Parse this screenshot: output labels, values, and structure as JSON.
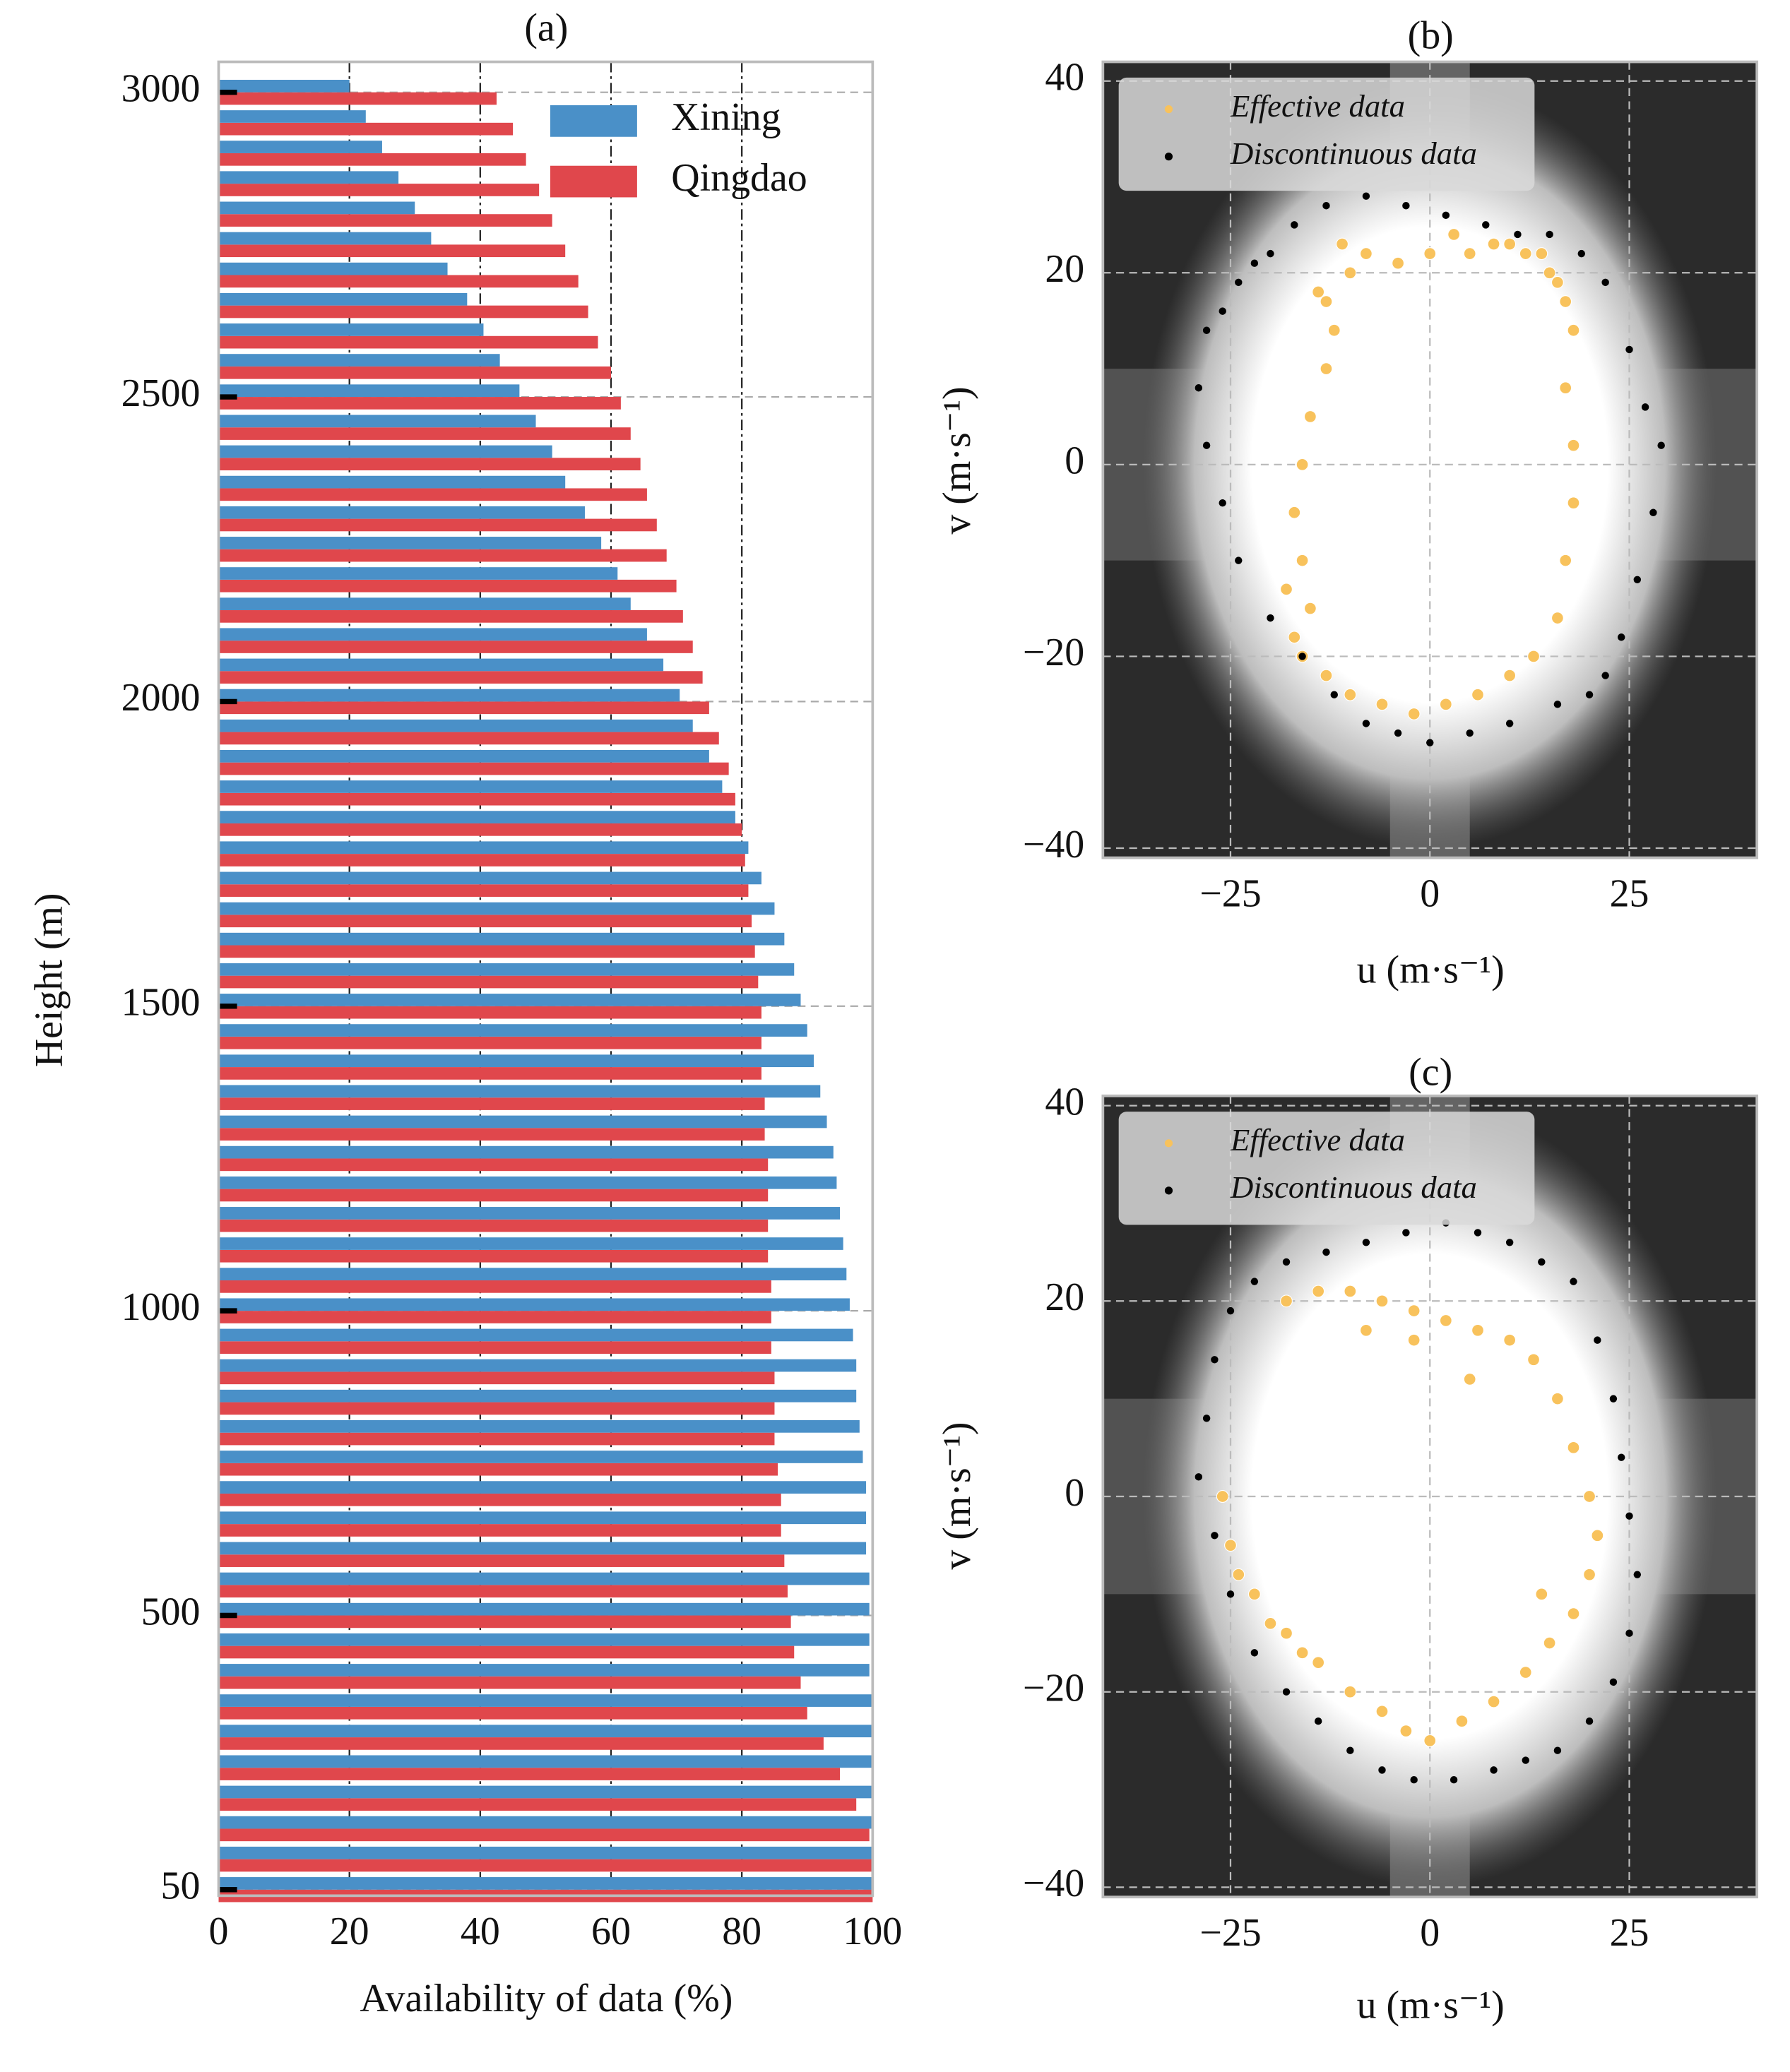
{
  "chart_data": [
    {
      "type": "bar",
      "orientation": "horizontal",
      "title": "(a)",
      "xlabel": "Availability of data (%)",
      "ylabel": "Height (m)",
      "y": [
        50,
        100,
        150,
        200,
        250,
        300,
        350,
        400,
        450,
        500,
        550,
        600,
        650,
        700,
        750,
        800,
        850,
        900,
        950,
        1000,
        1050,
        1100,
        1150,
        1200,
        1250,
        1300,
        1350,
        1400,
        1450,
        1500,
        1550,
        1600,
        1650,
        1700,
        1750,
        1800,
        1850,
        1900,
        1950,
        2000,
        2050,
        2100,
        2150,
        2200,
        2250,
        2300,
        2350,
        2400,
        2450,
        2500,
        2550,
        2600,
        2650,
        2700,
        2750,
        2800,
        2850,
        2900,
        2950,
        3000
      ],
      "series": [
        {
          "name": "Qingdao",
          "color": "#e0474c",
          "values": [
            100,
            100,
            99.5,
            97.5,
            95,
            92.5,
            90,
            89,
            88,
            87.5,
            87,
            86.5,
            86,
            86,
            85.5,
            85,
            85,
            85,
            84.5,
            84.5,
            84.5,
            84,
            84,
            84,
            84,
            83.5,
            83.5,
            83,
            83,
            83,
            82.5,
            82,
            81.5,
            81,
            80.5,
            80,
            79,
            78,
            76.5,
            75,
            74,
            72.5,
            71,
            70,
            68.5,
            67,
            65.5,
            64.5,
            63,
            61.5,
            60,
            58,
            56.5,
            55,
            53,
            51,
            49,
            47,
            45,
            42.5
          ]
        },
        {
          "name": "Xining",
          "color": "#4a90c8",
          "values": [
            100,
            100,
            100,
            100,
            100,
            100,
            100,
            99.5,
            99.5,
            99.5,
            99.5,
            99,
            99,
            99,
            98.5,
            98,
            97.5,
            97.5,
            97,
            96.5,
            96,
            95.5,
            95,
            94.5,
            94,
            93,
            92,
            91,
            90,
            89,
            88,
            86.5,
            85,
            83,
            81,
            79,
            77,
            75,
            72.5,
            70.5,
            68,
            65.5,
            63,
            61,
            58.5,
            56,
            53,
            51,
            48.5,
            46,
            43,
            40.5,
            38,
            35,
            32.5,
            30,
            27.5,
            25,
            22.5,
            20
          ]
        }
      ],
      "xlim": [
        0,
        100
      ],
      "xticks": [
        0,
        20,
        40,
        60,
        80,
        100
      ],
      "ylim": [
        40,
        3050
      ],
      "yticks": [
        50,
        500,
        1000,
        1500,
        2000,
        2500,
        3000
      ],
      "grid": true,
      "legend": "upper right"
    },
    {
      "type": "scatter",
      "title": "(b)",
      "xlabel": "u (m·s⁻¹)",
      "ylabel": "v (m·s⁻¹)",
      "xlim": [
        -41,
        41
      ],
      "xticks": [
        {
          "value": -25,
          "label": "−25"
        },
        0,
        25
      ],
      "ylim": [
        -41,
        42
      ],
      "yticks": [
        {
          "value": -40,
          "label": "−40"
        },
        {
          "value": -20,
          "label": "−20"
        },
        0,
        20,
        40
      ],
      "grid": true,
      "legend": "upper left",
      "series": [
        {
          "name": "Effective data",
          "color": "#f8c25c",
          "x": [
            -14,
            -12,
            -10,
            -13,
            -15,
            -16,
            -17,
            -16,
            -15,
            -17,
            -18,
            -16,
            -13,
            -10,
            -6,
            -2,
            2,
            6,
            10,
            13,
            16,
            17,
            18,
            18,
            17,
            18,
            16,
            14,
            10,
            5,
            0,
            -4,
            -8,
            -11,
            -13,
            3,
            8,
            12,
            15,
            17
          ],
          "values": [
            18,
            14,
            20,
            10,
            5,
            0,
            -5,
            -10,
            -15,
            -18,
            -13,
            -20,
            -22,
            -24,
            -25,
            -26,
            -25,
            -24,
            -22,
            -20,
            -16,
            -10,
            -4,
            2,
            8,
            14,
            19,
            22,
            23,
            22,
            22,
            21,
            22,
            23,
            17,
            24,
            23,
            22,
            20,
            17
          ]
        },
        {
          "name": "Discontinuous data",
          "color": "#000000",
          "x": [
            -20,
            -17,
            -13,
            -8,
            -3,
            2,
            7,
            11,
            15,
            19,
            22,
            25,
            27,
            29,
            28,
            26,
            24,
            22,
            20,
            16,
            10,
            5,
            0,
            -4,
            -8,
            -12,
            -16,
            -20,
            -24,
            -26,
            -28,
            -29,
            -28,
            -26,
            -24,
            -22
          ],
          "values": [
            22,
            25,
            27,
            28,
            27,
            26,
            25,
            24,
            24,
            22,
            19,
            12,
            6,
            2,
            -5,
            -12,
            -18,
            -22,
            -24,
            -25,
            -27,
            -28,
            -29,
            -28,
            -27,
            -24,
            -20,
            -16,
            -10,
            -4,
            2,
            8,
            14,
            16,
            19,
            21
          ]
        }
      ]
    },
    {
      "type": "scatter",
      "title": "(c)",
      "xlabel": "u (m·s⁻¹)",
      "ylabel": "v (m·s⁻¹)",
      "xlim": [
        -41,
        41
      ],
      "xticks": [
        {
          "value": -25,
          "label": "−25"
        },
        0,
        25
      ],
      "ylim": [
        -41,
        41
      ],
      "yticks": [
        {
          "value": -40,
          "label": "−40"
        },
        {
          "value": -20,
          "label": "−20"
        },
        0,
        20,
        40
      ],
      "grid": true,
      "legend": "upper left",
      "series": [
        {
          "name": "Effective data",
          "color": "#f8c25c",
          "x": [
            -18,
            -14,
            -10,
            -6,
            -2,
            2,
            6,
            10,
            13,
            16,
            18,
            20,
            21,
            20,
            18,
            15,
            12,
            8,
            4,
            0,
            -3,
            -6,
            -10,
            -14,
            -18,
            -22,
            -25,
            -26,
            -24,
            -20,
            -2,
            5,
            14,
            -16,
            -8
          ],
          "values": [
            20,
            21,
            21,
            20,
            19,
            18,
            17,
            16,
            14,
            10,
            5,
            0,
            -4,
            -8,
            -12,
            -15,
            -18,
            -21,
            -23,
            -25,
            -24,
            -22,
            -20,
            -17,
            -14,
            -10,
            -5,
            0,
            -8,
            -13,
            16,
            12,
            -10,
            -16,
            17
          ]
        },
        {
          "name": "Discontinuous data",
          "color": "#000000",
          "x": [
            -22,
            -18,
            -13,
            -8,
            -3,
            2,
            6,
            10,
            14,
            18,
            21,
            23,
            24,
            25,
            26,
            25,
            23,
            20,
            16,
            12,
            8,
            3,
            -2,
            -6,
            -10,
            -14,
            -18,
            -22,
            -25,
            -27,
            -29,
            -28,
            -27,
            -25
          ],
          "values": [
            22,
            24,
            25,
            26,
            27,
            28,
            27,
            26,
            24,
            22,
            16,
            10,
            4,
            -2,
            -8,
            -14,
            -19,
            -23,
            -26,
            -27,
            -28,
            -29,
            -29,
            -28,
            -26,
            -23,
            -20,
            -16,
            -10,
            -4,
            2,
            8,
            14,
            19
          ]
        }
      ]
    }
  ]
}
